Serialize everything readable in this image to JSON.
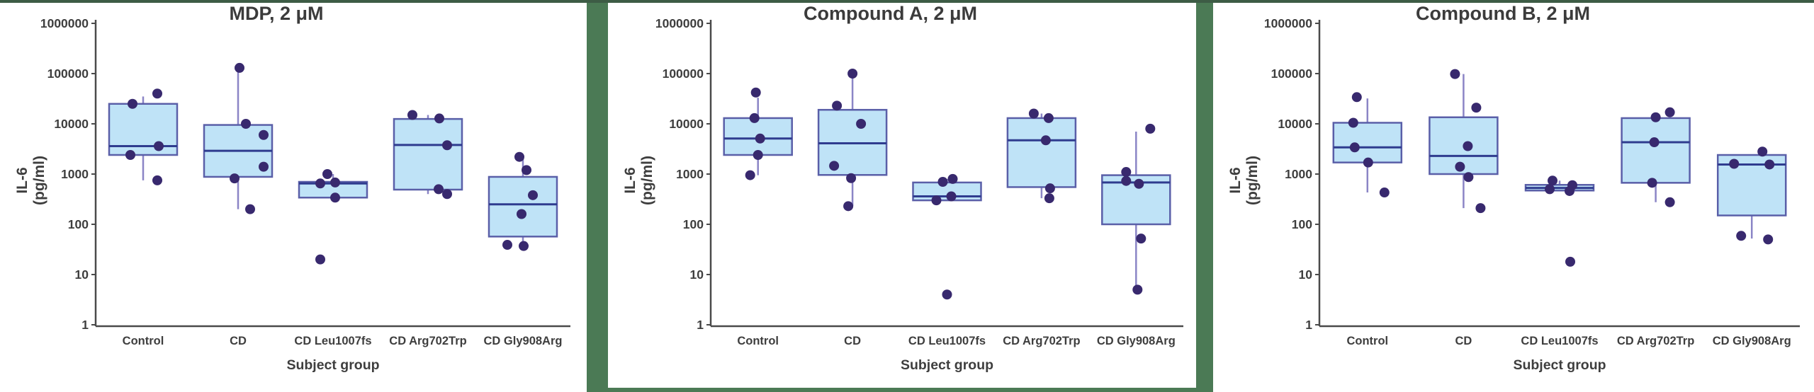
{
  "figure": {
    "background": "#ffffff",
    "frame_color": "#4b7a55",
    "top_strip_color": "#3d5c45"
  },
  "style": {
    "box_fill": "#bfe3f7",
    "box_stroke": "#5a5fa8",
    "median_color": "#2f3c8f",
    "whisker_color": "#8b85c6",
    "point_color": "#38296e",
    "axis_color": "#4a4a4a",
    "tick_text_color": "#3e3e3e",
    "title_color": "#3b3b3b"
  },
  "axes": {
    "ylabel_line1": "IL-6",
    "ylabel_line2": "(pg/ml)",
    "xlabel": "Subject group",
    "ytick_labels": [
      "1",
      "10",
      "100",
      "1000",
      "10000",
      "100000",
      "1000000"
    ],
    "categories": [
      "Control",
      "CD",
      "CD Leu1007fs",
      "CD Arg702Trp",
      "CD Gly908Arg"
    ]
  },
  "chart_data": [
    {
      "type": "box",
      "title": "MDP, 2 μM",
      "xlabel": "Subject group",
      "ylabel": "IL-6 (pg/ml)",
      "y_scale": "log",
      "ylim": [
        1,
        1000000
      ],
      "yticks": [
        1,
        10,
        100,
        1000,
        10000,
        100000,
        1000000
      ],
      "categories": [
        "Control",
        "CD",
        "CD Leu1007fs",
        "CD Arg702Trp",
        "CD Gly908Arg"
      ],
      "groups": [
        {
          "name": "Control",
          "q1": 2400,
          "median": 3600,
          "q3": 25000,
          "whisker_lo": 750,
          "whisker_hi": 35000,
          "points": [
            {
              "v": 40000,
              "dx": 20
            },
            {
              "v": 25000,
              "dx": -15
            },
            {
              "v": 3600,
              "dx": 22
            },
            {
              "v": 2400,
              "dx": -18
            },
            {
              "v": 750,
              "dx": 20
            }
          ]
        },
        {
          "name": "CD",
          "q1": 880,
          "median": 2900,
          "q3": 9500,
          "whisker_lo": 200,
          "whisker_hi": 130000,
          "points": [
            {
              "v": 130000,
              "dx": 2
            },
            {
              "v": 10000,
              "dx": 11
            },
            {
              "v": 6000,
              "dx": 36
            },
            {
              "v": 1400,
              "dx": 36
            },
            {
              "v": 820,
              "dx": -5
            },
            {
              "v": 200,
              "dx": 17
            }
          ]
        },
        {
          "name": "CD Leu1007fs",
          "q1": 340,
          "median": 650,
          "q3": 700,
          "whisker_lo": 340,
          "whisker_hi": 1000,
          "points": [
            {
              "v": 1000,
              "dx": -8
            },
            {
              "v": 680,
              "dx": 3
            },
            {
              "v": 650,
              "dx": -18
            },
            {
              "v": 340,
              "dx": 3
            },
            {
              "v": 20,
              "dx": -18
            }
          ]
        },
        {
          "name": "CD Arg702Trp",
          "q1": 490,
          "median": 3800,
          "q3": 12500,
          "whisker_lo": 400,
          "whisker_hi": 15000,
          "points": [
            {
              "v": 15000,
              "dx": -22
            },
            {
              "v": 12800,
              "dx": 16
            },
            {
              "v": 3750,
              "dx": 27
            },
            {
              "v": 500,
              "dx": 15
            },
            {
              "v": 400,
              "dx": 27
            }
          ]
        },
        {
          "name": "CD Gly908Arg",
          "q1": 57,
          "median": 250,
          "q3": 880,
          "whisker_lo": 37,
          "whisker_hi": 2200,
          "points": [
            {
              "v": 2200,
              "dx": -5
            },
            {
              "v": 1200,
              "dx": 5
            },
            {
              "v": 380,
              "dx": 14
            },
            {
              "v": 160,
              "dx": -2
            },
            {
              "v": 39,
              "dx": -22
            },
            {
              "v": 37,
              "dx": 1
            }
          ]
        }
      ]
    },
    {
      "type": "box",
      "title": "Compound A, 2 μM",
      "xlabel": "Subject group",
      "ylabel": "IL-6 (pg/ml)",
      "y_scale": "log",
      "ylim": [
        1,
        1000000
      ],
      "yticks": [
        1,
        10,
        100,
        1000,
        10000,
        100000,
        1000000
      ],
      "categories": [
        "Control",
        "CD",
        "CD Leu1007fs",
        "CD Arg702Trp",
        "CD Gly908Arg"
      ],
      "groups": [
        {
          "name": "Control",
          "q1": 2400,
          "median": 5100,
          "q3": 13000,
          "whisker_lo": 950,
          "whisker_hi": 33000,
          "points": [
            {
              "v": 42000,
              "dx": -3
            },
            {
              "v": 13000,
              "dx": -5
            },
            {
              "v": 5100,
              "dx": 3
            },
            {
              "v": 2400,
              "dx": 0
            },
            {
              "v": 950,
              "dx": -11
            }
          ]
        },
        {
          "name": "CD",
          "q1": 960,
          "median": 4100,
          "q3": 19000,
          "whisker_lo": 230,
          "whisker_hi": 100000,
          "points": [
            {
              "v": 100000,
              "dx": 0
            },
            {
              "v": 23000,
              "dx": -22
            },
            {
              "v": 10000,
              "dx": 12
            },
            {
              "v": 1460,
              "dx": -26
            },
            {
              "v": 830,
              "dx": -2
            },
            {
              "v": 230,
              "dx": -6
            }
          ]
        },
        {
          "name": "CD Leu1007fs",
          "q1": 300,
          "median": 360,
          "q3": 680,
          "whisker_lo": 300,
          "whisker_hi": 800,
          "points": [
            {
              "v": 800,
              "dx": 8
            },
            {
              "v": 700,
              "dx": -6
            },
            {
              "v": 360,
              "dx": 6
            },
            {
              "v": 300,
              "dx": -15
            },
            {
              "v": 4,
              "dx": 0
            }
          ]
        },
        {
          "name": "CD Arg702Trp",
          "q1": 550,
          "median": 4700,
          "q3": 13000,
          "whisker_lo": 330,
          "whisker_hi": 16000,
          "points": [
            {
              "v": 16000,
              "dx": -11
            },
            {
              "v": 13000,
              "dx": 10
            },
            {
              "v": 4700,
              "dx": 6
            },
            {
              "v": 520,
              "dx": 12
            },
            {
              "v": 330,
              "dx": 11
            }
          ]
        },
        {
          "name": "CD Gly908Arg",
          "q1": 100,
          "median": 680,
          "q3": 950,
          "whisker_lo": 5,
          "whisker_hi": 7000,
          "points": [
            {
              "v": 8000,
              "dx": 20
            },
            {
              "v": 1100,
              "dx": -14
            },
            {
              "v": 730,
              "dx": -14
            },
            {
              "v": 640,
              "dx": 4
            },
            {
              "v": 52,
              "dx": 7
            },
            {
              "v": 5,
              "dx": 2
            }
          ]
        }
      ]
    },
    {
      "type": "box",
      "title": "Compound B, 2 μM",
      "xlabel": "Subject group",
      "ylabel": "IL-6 (pg/ml)",
      "y_scale": "log",
      "ylim": [
        1,
        1000000
      ],
      "yticks": [
        1,
        10,
        100,
        1000,
        10000,
        100000,
        1000000
      ],
      "categories": [
        "Control",
        "CD",
        "CD Leu1007fs",
        "CD Arg702Trp",
        "CD Gly908Arg"
      ],
      "groups": [
        {
          "name": "Control",
          "q1": 1700,
          "median": 3400,
          "q3": 10500,
          "whisker_lo": 430,
          "whisker_hi": 32000,
          "points": [
            {
              "v": 34000,
              "dx": -15
            },
            {
              "v": 10500,
              "dx": -20
            },
            {
              "v": 3400,
              "dx": -18
            },
            {
              "v": 1700,
              "dx": 1
            },
            {
              "v": 430,
              "dx": 24
            }
          ]
        },
        {
          "name": "CD",
          "q1": 1000,
          "median": 2300,
          "q3": 13500,
          "whisker_lo": 210,
          "whisker_hi": 98000,
          "points": [
            {
              "v": 98000,
              "dx": -12
            },
            {
              "v": 21000,
              "dx": 18
            },
            {
              "v": 3600,
              "dx": 6
            },
            {
              "v": 1400,
              "dx": -5
            },
            {
              "v": 870,
              "dx": 7
            },
            {
              "v": 210,
              "dx": 24
            }
          ]
        },
        {
          "name": "CD Leu1007fs",
          "q1": 470,
          "median": 530,
          "q3": 610,
          "whisker_lo": 470,
          "whisker_hi": 740,
          "points": [
            {
              "v": 740,
              "dx": -10
            },
            {
              "v": 600,
              "dx": 18
            },
            {
              "v": 500,
              "dx": -14
            },
            {
              "v": 460,
              "dx": 14
            },
            {
              "v": 18,
              "dx": 15
            }
          ]
        },
        {
          "name": "CD Arg702Trp",
          "q1": 670,
          "median": 4300,
          "q3": 13000,
          "whisker_lo": 275,
          "whisker_hi": 13500,
          "points": [
            {
              "v": 17000,
              "dx": 20
            },
            {
              "v": 13500,
              "dx": 0
            },
            {
              "v": 4300,
              "dx": -2
            },
            {
              "v": 670,
              "dx": -5
            },
            {
              "v": 275,
              "dx": 20
            }
          ]
        },
        {
          "name": "CD Gly908Arg",
          "q1": 150,
          "median": 1550,
          "q3": 2400,
          "whisker_lo": 52,
          "whisker_hi": 2400,
          "points": [
            {
              "v": 2800,
              "dx": 15
            },
            {
              "v": 1600,
              "dx": -25
            },
            {
              "v": 1550,
              "dx": 25
            },
            {
              "v": 59,
              "dx": -15
            },
            {
              "v": 50,
              "dx": 23
            }
          ]
        }
      ]
    }
  ]
}
